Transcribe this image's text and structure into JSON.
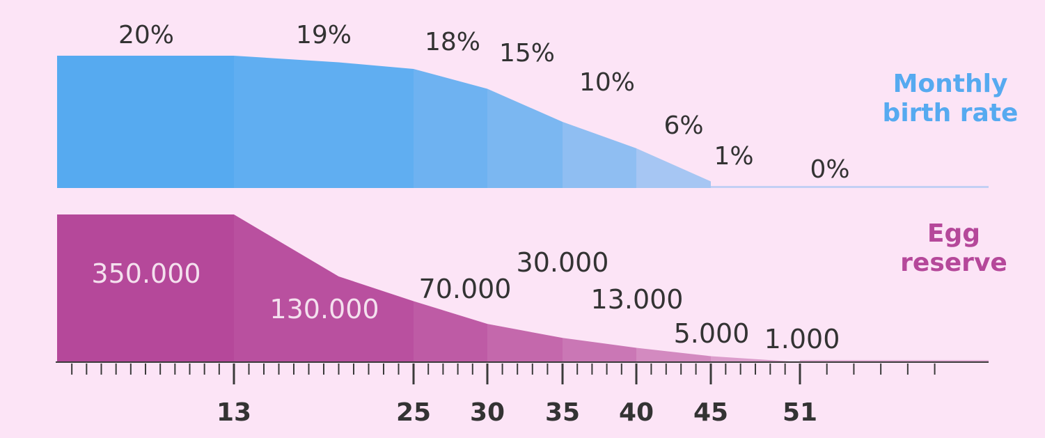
{
  "chart_data": {
    "type": "area",
    "x_ticks": [
      "13",
      "25",
      "30",
      "35",
      "40",
      "45",
      "51"
    ],
    "series": [
      {
        "name": "Monthly birth rate",
        "name_lines": [
          "Monthly",
          "birth rate"
        ],
        "color": "#56aaf0",
        "points": [
          {
            "x": 1,
            "y": 20,
            "label": "20%"
          },
          {
            "x": 13,
            "y": 20
          },
          {
            "x": 20,
            "y": 19,
            "label": "19%"
          },
          {
            "x": 25,
            "y": 18,
            "label": "18%"
          },
          {
            "x": 30,
            "y": 15,
            "label": "15%"
          },
          {
            "x": 35,
            "y": 10,
            "label": "10%"
          },
          {
            "x": 40,
            "y": 6,
            "label": "6%"
          },
          {
            "x": 45,
            "y": 1,
            "label": "1%"
          },
          {
            "x": 51,
            "y": 0,
            "label": "0%"
          },
          {
            "x": 58,
            "y": 0
          }
        ]
      },
      {
        "name": "Egg reserve",
        "name_lines": [
          "Egg",
          "reserve"
        ],
        "color": "#b5489a",
        "points": [
          {
            "x": 1,
            "y": 350000,
            "label": "350.000"
          },
          {
            "x": 13,
            "y": 350000
          },
          {
            "x": 20,
            "y": 130000,
            "label": "130.000"
          },
          {
            "x": 25,
            "y": 70000,
            "label": "70.000"
          },
          {
            "x": 30,
            "y": 30000,
            "label": "30.000"
          },
          {
            "x": 35,
            "y": 13000,
            "label": "13.000"
          },
          {
            "x": 40,
            "y": 5000,
            "label": "5.000"
          },
          {
            "x": 45,
            "y": 1000,
            "label": "1.000"
          },
          {
            "x": 51,
            "y": 0
          },
          {
            "x": 58,
            "y": 0
          }
        ]
      }
    ]
  }
}
